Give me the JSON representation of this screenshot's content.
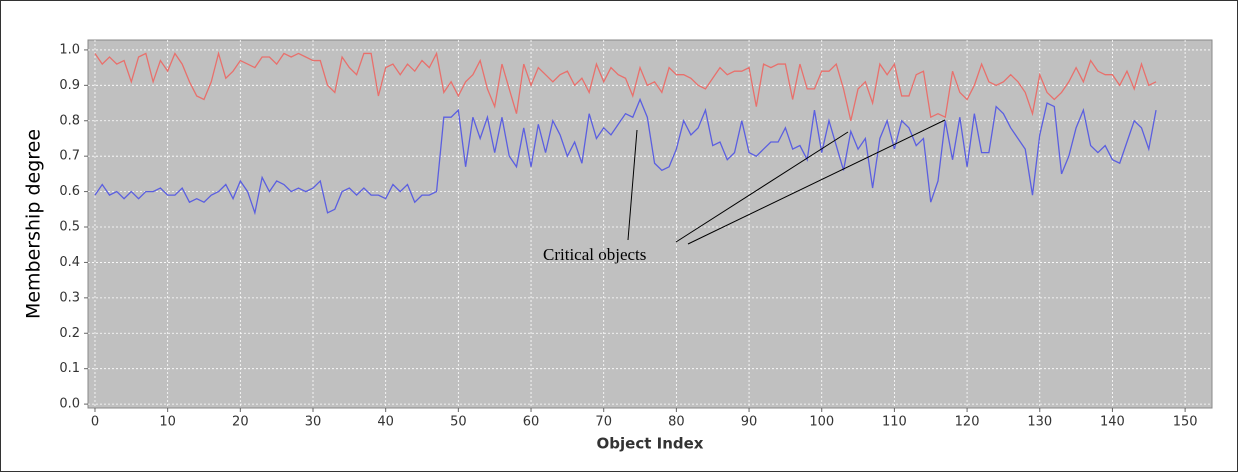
{
  "chart_data": {
    "type": "line",
    "y_label": "Membership degree",
    "x_label": "Object Index",
    "annotation": "Critical objects",
    "x": [
      0,
      1,
      2,
      3,
      4,
      5,
      6,
      7,
      8,
      9,
      10,
      11,
      12,
      13,
      14,
      15,
      16,
      17,
      18,
      19,
      20,
      21,
      22,
      23,
      24,
      25,
      26,
      27,
      28,
      29,
      30,
      31,
      32,
      33,
      34,
      35,
      36,
      37,
      38,
      39,
      40,
      41,
      42,
      43,
      44,
      45,
      46,
      47,
      48,
      49,
      50,
      51,
      52,
      53,
      54,
      55,
      56,
      57,
      58,
      59,
      60,
      61,
      62,
      63,
      64,
      65,
      66,
      67,
      68,
      69,
      70,
      71,
      72,
      73,
      74,
      75,
      76,
      77,
      78,
      79,
      80,
      81,
      82,
      83,
      84,
      85,
      86,
      87,
      88,
      89,
      90,
      91,
      92,
      93,
      94,
      95,
      96,
      97,
      98,
      99,
      100,
      101,
      102,
      103,
      104,
      105,
      106,
      107,
      108,
      109,
      110,
      111,
      112,
      113,
      114,
      115,
      116,
      117,
      118,
      119,
      120,
      121,
      122,
      123,
      124,
      125,
      126,
      127,
      128,
      129,
      130,
      131,
      132,
      133,
      134,
      135,
      136,
      137,
      138,
      139,
      140,
      141,
      142,
      143,
      144,
      145,
      146
    ],
    "series": [
      {
        "color": "#e8706c",
        "values": [
          0.99,
          0.96,
          0.98,
          0.96,
          0.97,
          0.91,
          0.98,
          0.99,
          0.91,
          0.97,
          0.94,
          0.99,
          0.96,
          0.91,
          0.87,
          0.86,
          0.91,
          0.99,
          0.92,
          0.94,
          0.97,
          0.96,
          0.95,
          0.98,
          0.98,
          0.96,
          0.99,
          0.98,
          0.99,
          0.98,
          0.97,
          0.97,
          0.9,
          0.88,
          0.98,
          0.95,
          0.93,
          0.99,
          0.99,
          0.87,
          0.95,
          0.96,
          0.93,
          0.96,
          0.94,
          0.97,
          0.95,
          0.99,
          0.88,
          0.91,
          0.87,
          0.91,
          0.93,
          0.97,
          0.89,
          0.84,
          0.96,
          0.89,
          0.82,
          0.96,
          0.9,
          0.95,
          0.93,
          0.91,
          0.93,
          0.94,
          0.9,
          0.92,
          0.88,
          0.96,
          0.91,
          0.95,
          0.93,
          0.92,
          0.87,
          0.95,
          0.9,
          0.91,
          0.88,
          0.95,
          0.93,
          0.93,
          0.92,
          0.9,
          0.89,
          0.92,
          0.95,
          0.93,
          0.94,
          0.94,
          0.95,
          0.84,
          0.96,
          0.95,
          0.96,
          0.96,
          0.86,
          0.96,
          0.89,
          0.89,
          0.94,
          0.94,
          0.96,
          0.89,
          0.8,
          0.89,
          0.91,
          0.85,
          0.96,
          0.93,
          0.96,
          0.87,
          0.87,
          0.93,
          0.94,
          0.81,
          0.82,
          0.81,
          0.94,
          0.88,
          0.86,
          0.9,
          0.96,
          0.91,
          0.9,
          0.91,
          0.93,
          0.91,
          0.88,
          0.82,
          0.93,
          0.88,
          0.86,
          0.88,
          0.91,
          0.95,
          0.91,
          0.97,
          0.94,
          0.93,
          0.93,
          0.9,
          0.94,
          0.89,
          0.96,
          0.9,
          0.91
        ]
      },
      {
        "color": "#5b5fe0",
        "values": [
          0.59,
          0.62,
          0.59,
          0.6,
          0.58,
          0.6,
          0.58,
          0.6,
          0.6,
          0.61,
          0.59,
          0.59,
          0.61,
          0.57,
          0.58,
          0.57,
          0.59,
          0.6,
          0.62,
          0.58,
          0.63,
          0.6,
          0.54,
          0.64,
          0.6,
          0.63,
          0.62,
          0.6,
          0.61,
          0.6,
          0.61,
          0.63,
          0.54,
          0.55,
          0.6,
          0.61,
          0.59,
          0.61,
          0.59,
          0.59,
          0.58,
          0.62,
          0.6,
          0.62,
          0.57,
          0.59,
          0.59,
          0.6,
          0.81,
          0.81,
          0.83,
          0.67,
          0.81,
          0.75,
          0.81,
          0.71,
          0.81,
          0.7,
          0.67,
          0.78,
          0.67,
          0.79,
          0.71,
          0.8,
          0.76,
          0.7,
          0.74,
          0.68,
          0.82,
          0.75,
          0.78,
          0.76,
          0.79,
          0.82,
          0.81,
          0.86,
          0.81,
          0.68,
          0.66,
          0.67,
          0.72,
          0.8,
          0.76,
          0.78,
          0.83,
          0.73,
          0.74,
          0.69,
          0.71,
          0.8,
          0.71,
          0.7,
          0.72,
          0.74,
          0.74,
          0.78,
          0.72,
          0.73,
          0.69,
          0.83,
          0.71,
          0.8,
          0.73,
          0.66,
          0.77,
          0.72,
          0.75,
          0.61,
          0.75,
          0.8,
          0.72,
          0.8,
          0.78,
          0.73,
          0.75,
          0.57,
          0.63,
          0.8,
          0.69,
          0.81,
          0.67,
          0.82,
          0.71,
          0.71,
          0.84,
          0.82,
          0.78,
          0.75,
          0.72,
          0.59,
          0.76,
          0.85,
          0.84,
          0.65,
          0.7,
          0.78,
          0.83,
          0.73,
          0.71,
          0.73,
          0.69,
          0.68,
          0.74,
          0.8,
          0.78,
          0.72,
          0.83
        ]
      }
    ],
    "xlim": [
      -0.96,
      153.7
    ],
    "ylim": [
      -0.011,
      1.028
    ],
    "xticks": [
      0,
      10,
      20,
      30,
      40,
      50,
      60,
      70,
      80,
      90,
      100,
      110,
      120,
      130,
      140,
      150
    ],
    "yticks": [
      {
        "value": 0,
        "label": "0.0"
      },
      0.1,
      0.2,
      0.3,
      0.4,
      0.5,
      0.6,
      0.7,
      0.8,
      0.9,
      {
        "value": 1,
        "label": "1.0"
      }
    ],
    "grid": true
  }
}
